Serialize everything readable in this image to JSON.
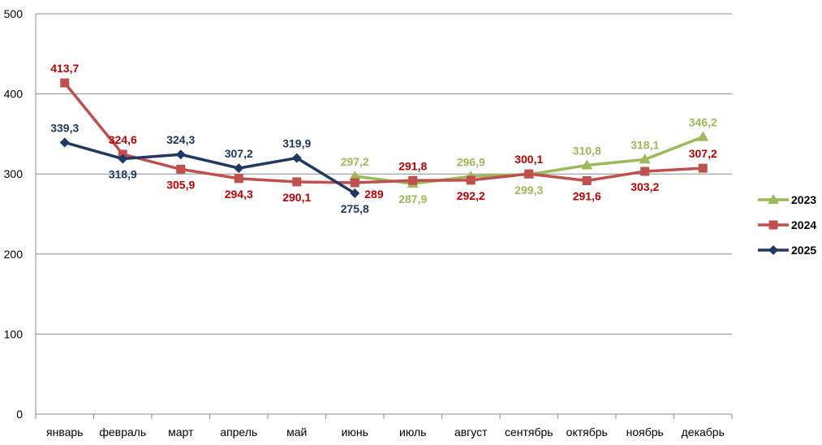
{
  "chart_data": {
    "type": "line",
    "categories": [
      "январь",
      "февраль",
      "март",
      "апрель",
      "май",
      "июнь",
      "июль",
      "август",
      "сентябрь",
      "октябрь",
      "ноябрь",
      "декабрь"
    ],
    "ylim": [
      0,
      500
    ],
    "yticks": [
      0,
      100,
      200,
      300,
      400,
      500
    ],
    "grid": true,
    "legend_position": "right",
    "series": [
      {
        "name": "2023",
        "color": "#9BBB59",
        "marker": "triangle",
        "label_color": "#9BBB59",
        "values": [
          null,
          null,
          null,
          null,
          null,
          297.2,
          287.9,
          296.9,
          299.3,
          310.8,
          318.1,
          346.2
        ],
        "labels": [
          "",
          "",
          "",
          "",
          "",
          "297,2",
          "287,9",
          "296,9",
          "299,3",
          "310,8",
          "318,1",
          "346,2"
        ],
        "label_pos": [
          "",
          "",
          "",
          "",
          "",
          "above",
          "below",
          "above",
          "below",
          "above",
          "above",
          "above"
        ]
      },
      {
        "name": "2024",
        "color": "#C0504D",
        "marker": "square",
        "label_color": "#C00000",
        "values": [
          413.7,
          324.6,
          305.9,
          294.3,
          290.1,
          289,
          291.8,
          292.2,
          300.1,
          291.6,
          303.2,
          307.2
        ],
        "labels": [
          "413,7",
          "324,6",
          "305,9",
          "294,3",
          "290,1",
          "289",
          "291,8",
          "292,2",
          "300,1",
          "291,6",
          "303,2",
          "307,2"
        ],
        "label_pos": [
          "above",
          "above",
          "below",
          "below",
          "below",
          "right",
          "above",
          "below",
          "above",
          "below",
          "below",
          "above"
        ]
      },
      {
        "name": "2025",
        "color": "#1F3864",
        "marker": "diamond",
        "label_color": "#1F3864",
        "values": [
          339.3,
          318.9,
          324.3,
          307.2,
          319.9,
          275.8,
          null,
          null,
          null,
          null,
          null,
          null
        ],
        "labels": [
          "339,3",
          "318,9",
          "324,3",
          "307,2",
          "319,9",
          "275,8",
          "",
          "",
          "",
          "",
          "",
          ""
        ],
        "label_pos": [
          "above",
          "below",
          "above",
          "above",
          "above",
          "below",
          "",
          "",
          "",
          "",
          "",
          ""
        ]
      }
    ]
  }
}
